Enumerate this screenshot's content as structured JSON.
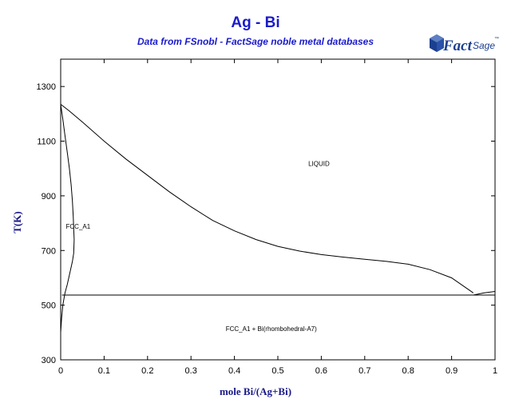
{
  "title": "Ag - Bi",
  "subtitle": "Data from FSnobl - FactSage noble metal databases",
  "logo": {
    "text_main": "Fact",
    "text_sub": "Sage",
    "mark": "™",
    "icon": "factsage-cube-logo"
  },
  "colors": {
    "title": "#1a1acc",
    "axis_label": "#1a1a88",
    "lines": "#000000",
    "logo": "#1c3f8f"
  },
  "chart_data": {
    "type": "line",
    "xlabel": "mole Bi/(Ag+Bi)",
    "ylabel": "T(K)",
    "xlim": [
      0,
      1
    ],
    "ylim": [
      300,
      1400
    ],
    "xticks": [
      0,
      0.1,
      0.2,
      0.3,
      0.4,
      0.5,
      0.6,
      0.7,
      0.8,
      0.9,
      1
    ],
    "xtick_labels": [
      "0",
      "0.1",
      "0.2",
      "0.3",
      "0.4",
      "0.5",
      "0.6",
      "0.7",
      "0.8",
      "0.9",
      "1"
    ],
    "yticks": [
      300,
      500,
      700,
      900,
      1100,
      1300
    ],
    "ytick_labels": [
      "300",
      "500",
      "700",
      "900",
      "1100",
      "1300"
    ],
    "series": [
      {
        "x": [
          0,
          0.02,
          0.05,
          0.1,
          0.15,
          0.2,
          0.25,
          0.3,
          0.35,
          0.4,
          0.45,
          0.5,
          0.55,
          0.6,
          0.65,
          0.7,
          0.75,
          0.8,
          0.85,
          0.9,
          0.95
        ],
        "y": [
          1235,
          1210,
          1170,
          1100,
          1035,
          975,
          915,
          860,
          810,
          772,
          740,
          715,
          698,
          685,
          676,
          668,
          660,
          650,
          630,
          600,
          545
        ]
      },
      {
        "x": [
          0,
          0.005,
          0.01,
          0.015,
          0.02,
          0.024,
          0.027,
          0.029,
          0.03,
          0.031,
          0.03,
          0.027
        ],
        "y": [
          1235,
          1180,
          1120,
          1060,
          1000,
          940,
          880,
          820,
          780,
          740,
          690,
          660
        ]
      },
      {
        "x": [
          0.027,
          0.02,
          0.015,
          0.01,
          0.005,
          0.002,
          0
        ],
        "y": [
          660,
          610,
          575,
          545,
          500,
          450,
          400
        ]
      },
      {
        "x": [
          0.003,
          1
        ],
        "y": [
          537,
          537
        ]
      },
      {
        "x": [
          0.95,
          0.975,
          1
        ],
        "y": [
          537,
          545,
          550
        ]
      }
    ],
    "annotations": [
      {
        "text": "LIQUID",
        "x": 0.57,
        "y": 1010
      },
      {
        "text": "FCC_A1",
        "x": 0.012,
        "y": 780
      },
      {
        "text": "FCC_A1 + Bi(rhombohedral-A7)",
        "x": 0.38,
        "y": 405
      }
    ]
  }
}
